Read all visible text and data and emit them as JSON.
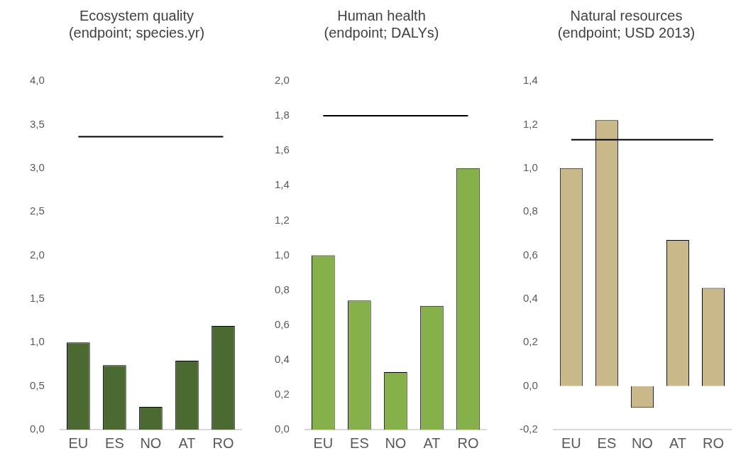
{
  "chart_data": [
    {
      "type": "bar",
      "title": "Ecosystem quality",
      "subtitle": "(endpoint; species.yr)",
      "categories": [
        "EU",
        "ES",
        "NO",
        "AT",
        "RO"
      ],
      "values": [
        1.0,
        0.74,
        0.26,
        0.79,
        1.19
      ],
      "color": "#4a6a31",
      "ylim": [
        0,
        4
      ],
      "yticks": [
        {
          "value": 0,
          "label": "0,0"
        },
        {
          "value": 0.5,
          "label": "0,5"
        },
        {
          "value": 1,
          "label": "1,0"
        },
        {
          "value": 1.5,
          "label": "1,5"
        },
        {
          "value": 2,
          "label": "2,0"
        },
        {
          "value": 2.5,
          "label": "2,5"
        },
        {
          "value": 3,
          "label": "3,0"
        },
        {
          "value": 3.5,
          "label": "3,5"
        },
        {
          "value": 4,
          "label": "4,0"
        }
      ],
      "grid": false,
      "legend": false,
      "ref_lines": [
        {
          "axis": "y",
          "value": 3.36,
          "color": "#000000"
        }
      ]
    },
    {
      "type": "bar",
      "title": "Human health",
      "subtitle": "(endpoint; DALYs)",
      "categories": [
        "EU",
        "ES",
        "NO",
        "AT",
        "RO"
      ],
      "values": [
        1.0,
        0.74,
        0.33,
        0.71,
        1.5
      ],
      "color": "#86b04a",
      "ylim": [
        0,
        2
      ],
      "yticks": [
        {
          "value": 0,
          "label": "0,0"
        },
        {
          "value": 0.2,
          "label": "0,2"
        },
        {
          "value": 0.4,
          "label": "0,4"
        },
        {
          "value": 0.6,
          "label": "0,6"
        },
        {
          "value": 0.8,
          "label": "0,8"
        },
        {
          "value": 1,
          "label": "1,0"
        },
        {
          "value": 1.2,
          "label": "1,2"
        },
        {
          "value": 1.4,
          "label": "1,4"
        },
        {
          "value": 1.6,
          "label": "1,6"
        },
        {
          "value": 1.8,
          "label": "1,8"
        },
        {
          "value": 2,
          "label": "2,0"
        }
      ],
      "grid": false,
      "legend": false,
      "ref_lines": [
        {
          "axis": "y",
          "value": 1.8,
          "color": "#000000"
        }
      ]
    },
    {
      "type": "bar",
      "title": "Natural resources",
      "subtitle": "(endpoint; USD 2013)",
      "categories": [
        "EU",
        "ES",
        "NO",
        "AT",
        "RO"
      ],
      "values": [
        1.0,
        1.22,
        -0.1,
        0.67,
        0.45
      ],
      "color": "#c9b98a",
      "ylim": [
        -0.2,
        1.4
      ],
      "yticks": [
        {
          "value": -0.2,
          "label": "-0,2"
        },
        {
          "value": 0,
          "label": "0,0"
        },
        {
          "value": 0.2,
          "label": "0,2"
        },
        {
          "value": 0.4,
          "label": "0,4"
        },
        {
          "value": 0.6,
          "label": "0,6"
        },
        {
          "value": 0.8,
          "label": "0,8"
        },
        {
          "value": 1,
          "label": "1,0"
        },
        {
          "value": 1.2,
          "label": "1,2"
        },
        {
          "value": 1.4,
          "label": "1,4"
        }
      ],
      "grid": false,
      "legend": false,
      "ref_lines": [
        {
          "axis": "y",
          "value": 1.13,
          "color": "#000000"
        }
      ]
    }
  ]
}
